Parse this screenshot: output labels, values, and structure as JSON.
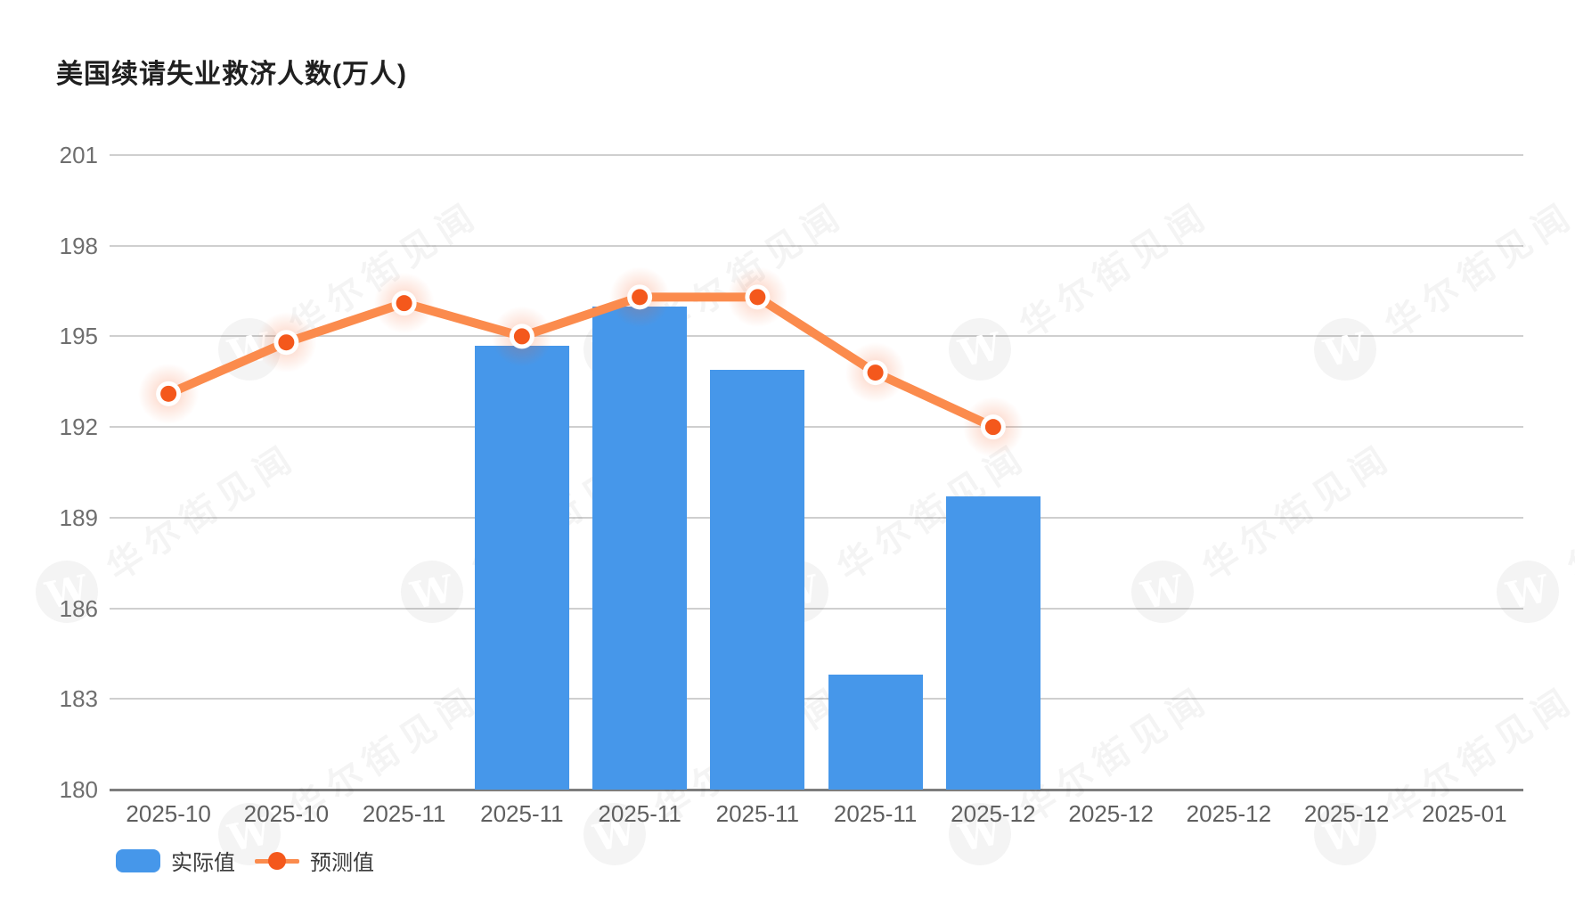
{
  "page": {
    "title": "美国续请失业救济人数(万人)"
  },
  "watermark": {
    "text": "华尔街见闻",
    "logo_letter": "W"
  },
  "colors": {
    "bar": "#4697ea",
    "line": "#fb8b4d",
    "marker": "#f4581c",
    "marker_ring": "#ffffff",
    "grid": "#cfcfcf",
    "axis": "#7d7d7d",
    "title": "#1f1f1f",
    "tick_label": "#5f5f5f"
  },
  "legend": {
    "items": [
      {
        "label": "实际值",
        "type": "bar"
      },
      {
        "label": "预测值",
        "type": "line"
      }
    ]
  },
  "chart_data": {
    "type": "bar",
    "title": "美国续请失业救济人数(万人)",
    "xlabel": "",
    "ylabel": "",
    "ylim": [
      180,
      201
    ],
    "yticks": [
      180,
      183,
      186,
      189,
      192,
      195,
      198,
      201
    ],
    "grid": true,
    "legend_position": "bottom-left",
    "categories": [
      "2025-10",
      "2025-10",
      "2025-11",
      "2025-11",
      "2025-11",
      "2025-11",
      "2025-11",
      "2025-12",
      "2025-12",
      "2025-12",
      "2025-12",
      "2025-01"
    ],
    "series": [
      {
        "name": "实际值",
        "type": "bar",
        "values": [
          null,
          null,
          null,
          194.7,
          196.0,
          193.9,
          183.8,
          189.7,
          null,
          null,
          null,
          null
        ]
      },
      {
        "name": "预测值",
        "type": "line",
        "values": [
          193.1,
          194.8,
          196.1,
          195.0,
          196.3,
          196.3,
          193.8,
          192.0,
          null,
          null,
          null,
          null
        ]
      }
    ]
  }
}
